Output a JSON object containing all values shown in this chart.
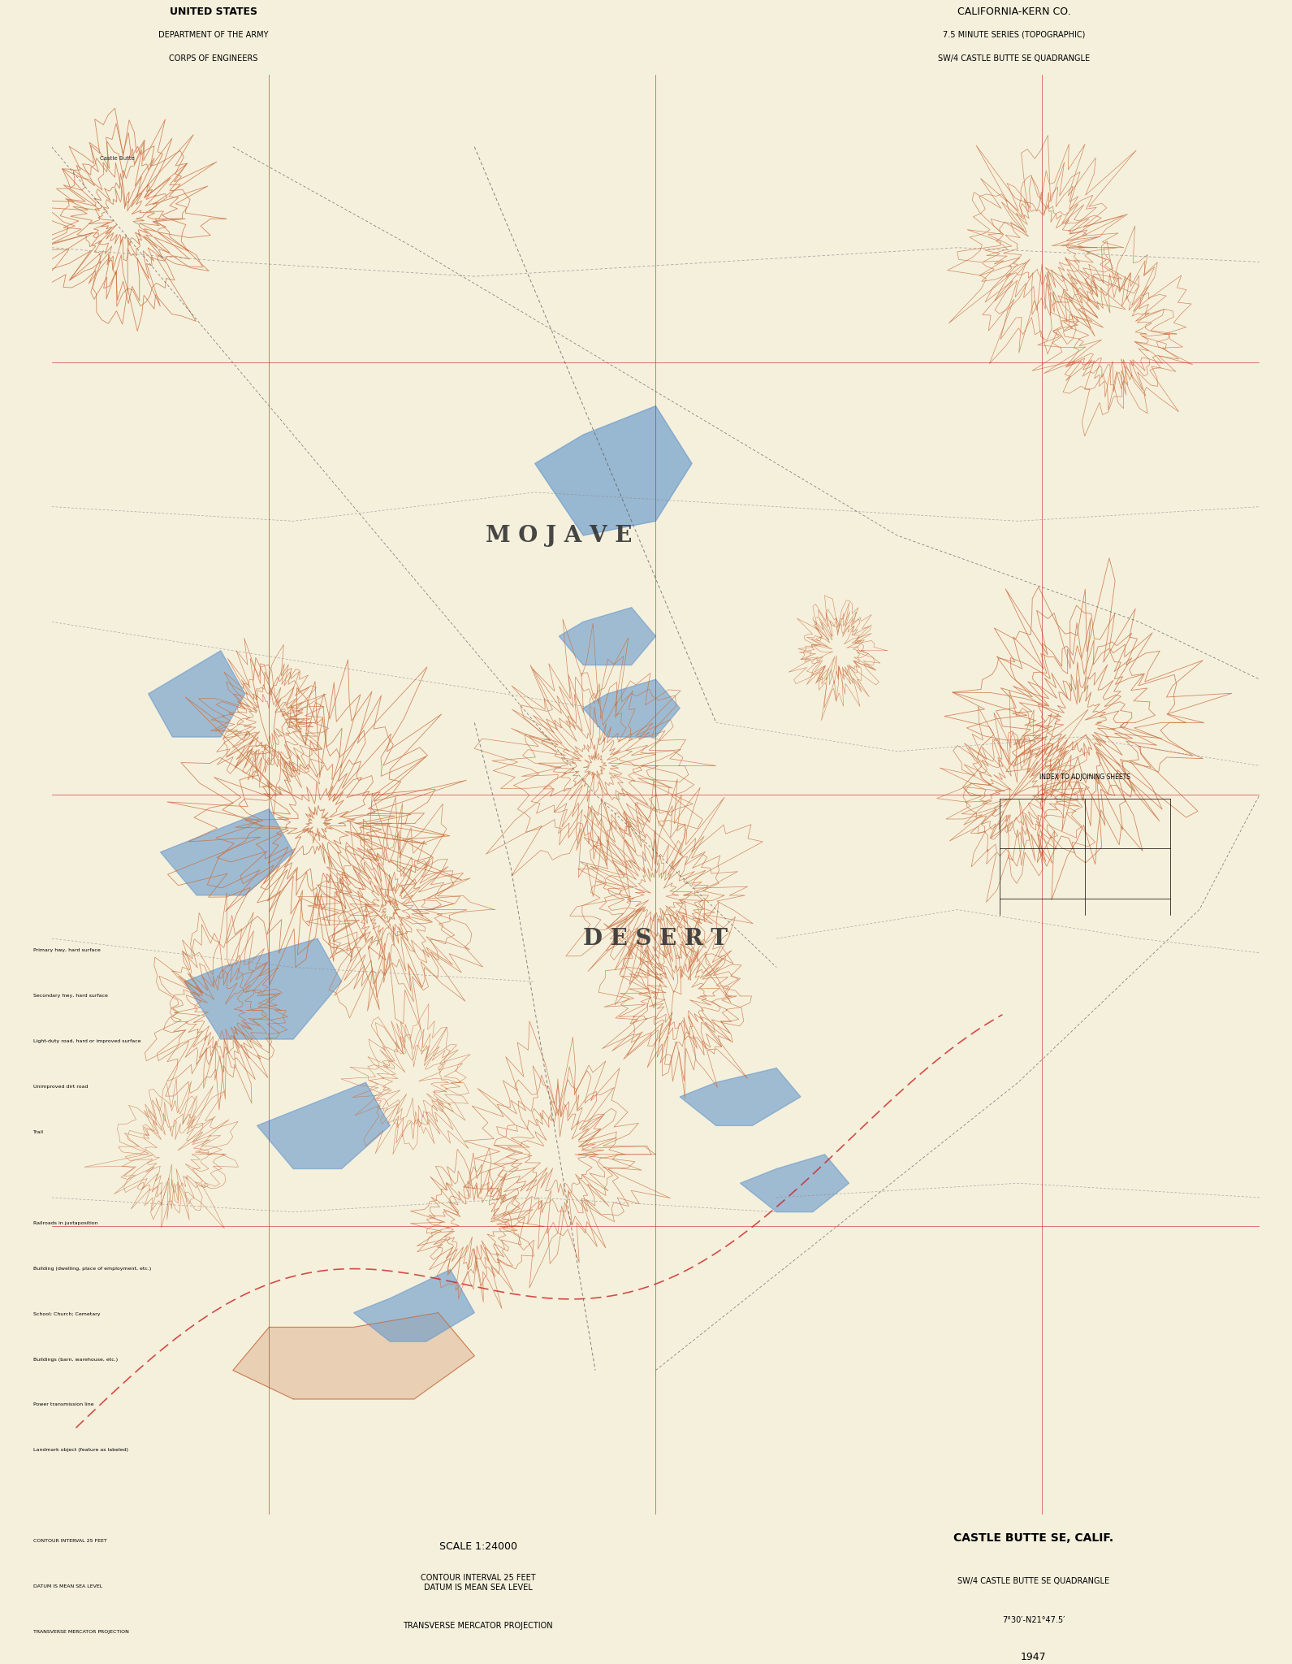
{
  "background_color": "#f5f0dc",
  "map_bg_color": "#fffff8",
  "title_top_left": [
    "UNITED STATES",
    "DEPARTMENT OF THE ARMY",
    "CORPS OF ENGINEERS"
  ],
  "title_top_right": [
    "CALIFORNIA-KERN CO.",
    "7.5 MINUTE SERIES (TOPOGRAPHIC)",
    "SW/4 CASTLE BUTTE SE QUADRANGLE"
  ],
  "map_label_mojave": "M O J A V E",
  "map_label_desert": "D E S E R T",
  "contour_color": "#c87040",
  "water_color": "#6699cc",
  "road_color": "#888888",
  "grid_color_red": "#cc2222",
  "grid_color_black": "#444444",
  "scale_text": "SCALE 1:24000",
  "year": "1947",
  "fig_width": 15.91,
  "fig_height": 20.48,
  "dpi": 100
}
